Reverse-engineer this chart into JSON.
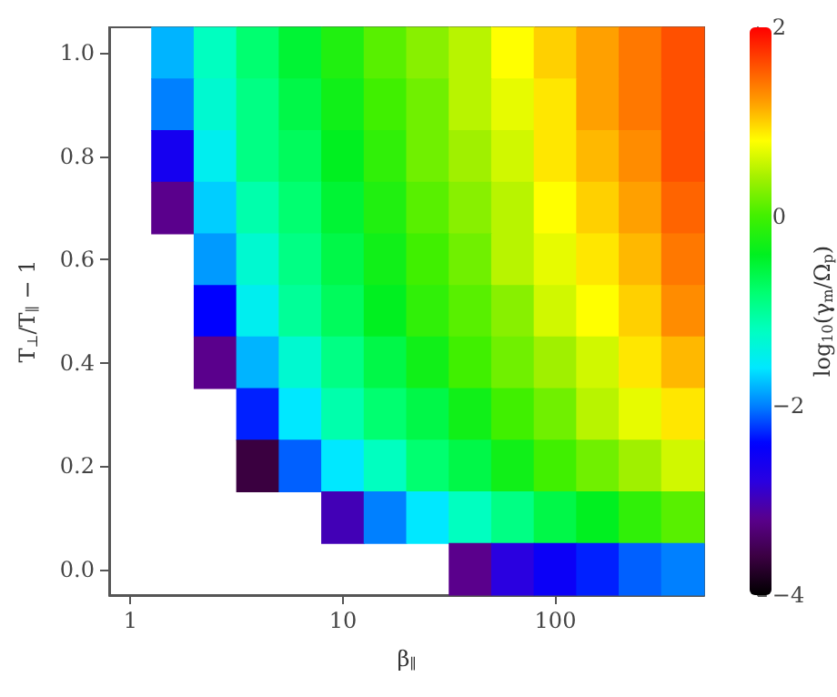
{
  "chart_data": {
    "type": "heatmap",
    "xlabel": "β$_{∥}$",
    "ylabel": "T$_{⊥}$/T$_{∥}$ − 1",
    "clabel": "log$_{10}$(γ$_{m}$/Ω$_{p}$)",
    "categories": [
      "1",
      null,
      null,
      null,
      null,
      "10",
      null,
      null,
      null,
      null,
      "100",
      null,
      null,
      null
    ],
    "y_categories": [
      "1.0",
      null,
      "0.8",
      null,
      "0.6",
      null,
      "0.4",
      null,
      "0.2",
      null,
      "0.0"
    ],
    "cells": [
      [
        null,
        -1.8,
        -1.2,
        -0.8,
        -0.5,
        -0.2,
        0.1,
        0.3,
        0.5,
        0.8,
        1.0,
        1.2,
        1.4,
        1.6
      ],
      [
        null,
        -2.0,
        -1.3,
        -0.9,
        -0.6,
        -0.3,
        0.0,
        0.2,
        0.5,
        0.7,
        0.9,
        1.2,
        1.4,
        1.6
      ],
      [
        null,
        -2.6,
        -1.5,
        -0.9,
        -0.7,
        -0.4,
        -0.1,
        0.2,
        0.4,
        0.6,
        0.9,
        1.1,
        1.3,
        1.6
      ],
      [
        null,
        -3.2,
        -1.7,
        -1.1,
        -0.8,
        -0.5,
        -0.2,
        0.1,
        0.3,
        0.5,
        0.8,
        1.0,
        1.2,
        1.5
      ],
      [
        null,
        null,
        -1.9,
        -1.3,
        -0.9,
        -0.6,
        -0.3,
        0.0,
        0.2,
        0.5,
        0.7,
        0.9,
        1.1,
        1.4
      ],
      [
        null,
        null,
        -2.4,
        -1.5,
        -1.0,
        -0.7,
        -0.4,
        -0.1,
        0.1,
        0.3,
        0.6,
        0.8,
        1.0,
        1.3
      ],
      [
        null,
        null,
        -3.2,
        -1.8,
        -1.3,
        -0.9,
        -0.6,
        -0.3,
        0.0,
        0.2,
        0.4,
        0.6,
        0.9,
        1.1
      ],
      [
        null,
        null,
        null,
        -2.3,
        -1.6,
        -1.1,
        -0.8,
        -0.6,
        -0.3,
        0.0,
        0.2,
        0.5,
        0.7,
        0.9
      ],
      [
        null,
        null,
        null,
        -3.6,
        -2.1,
        -1.6,
        -1.2,
        -0.8,
        -0.6,
        -0.3,
        0.0,
        0.2,
        0.4,
        0.6
      ],
      [
        null,
        null,
        null,
        null,
        null,
        -3.0,
        -2.0,
        -1.6,
        -1.2,
        -0.9,
        -0.6,
        -0.4,
        -0.1,
        0.1
      ],
      [
        null,
        null,
        null,
        null,
        null,
        null,
        null,
        null,
        -3.2,
        -2.8,
        -2.5,
        -2.3,
        -2.1,
        -2.0
      ]
    ],
    "clim": [
      -4,
      2
    ],
    "cticks": [
      -4,
      -2,
      0,
      2
    ],
    "grid": false
  }
}
